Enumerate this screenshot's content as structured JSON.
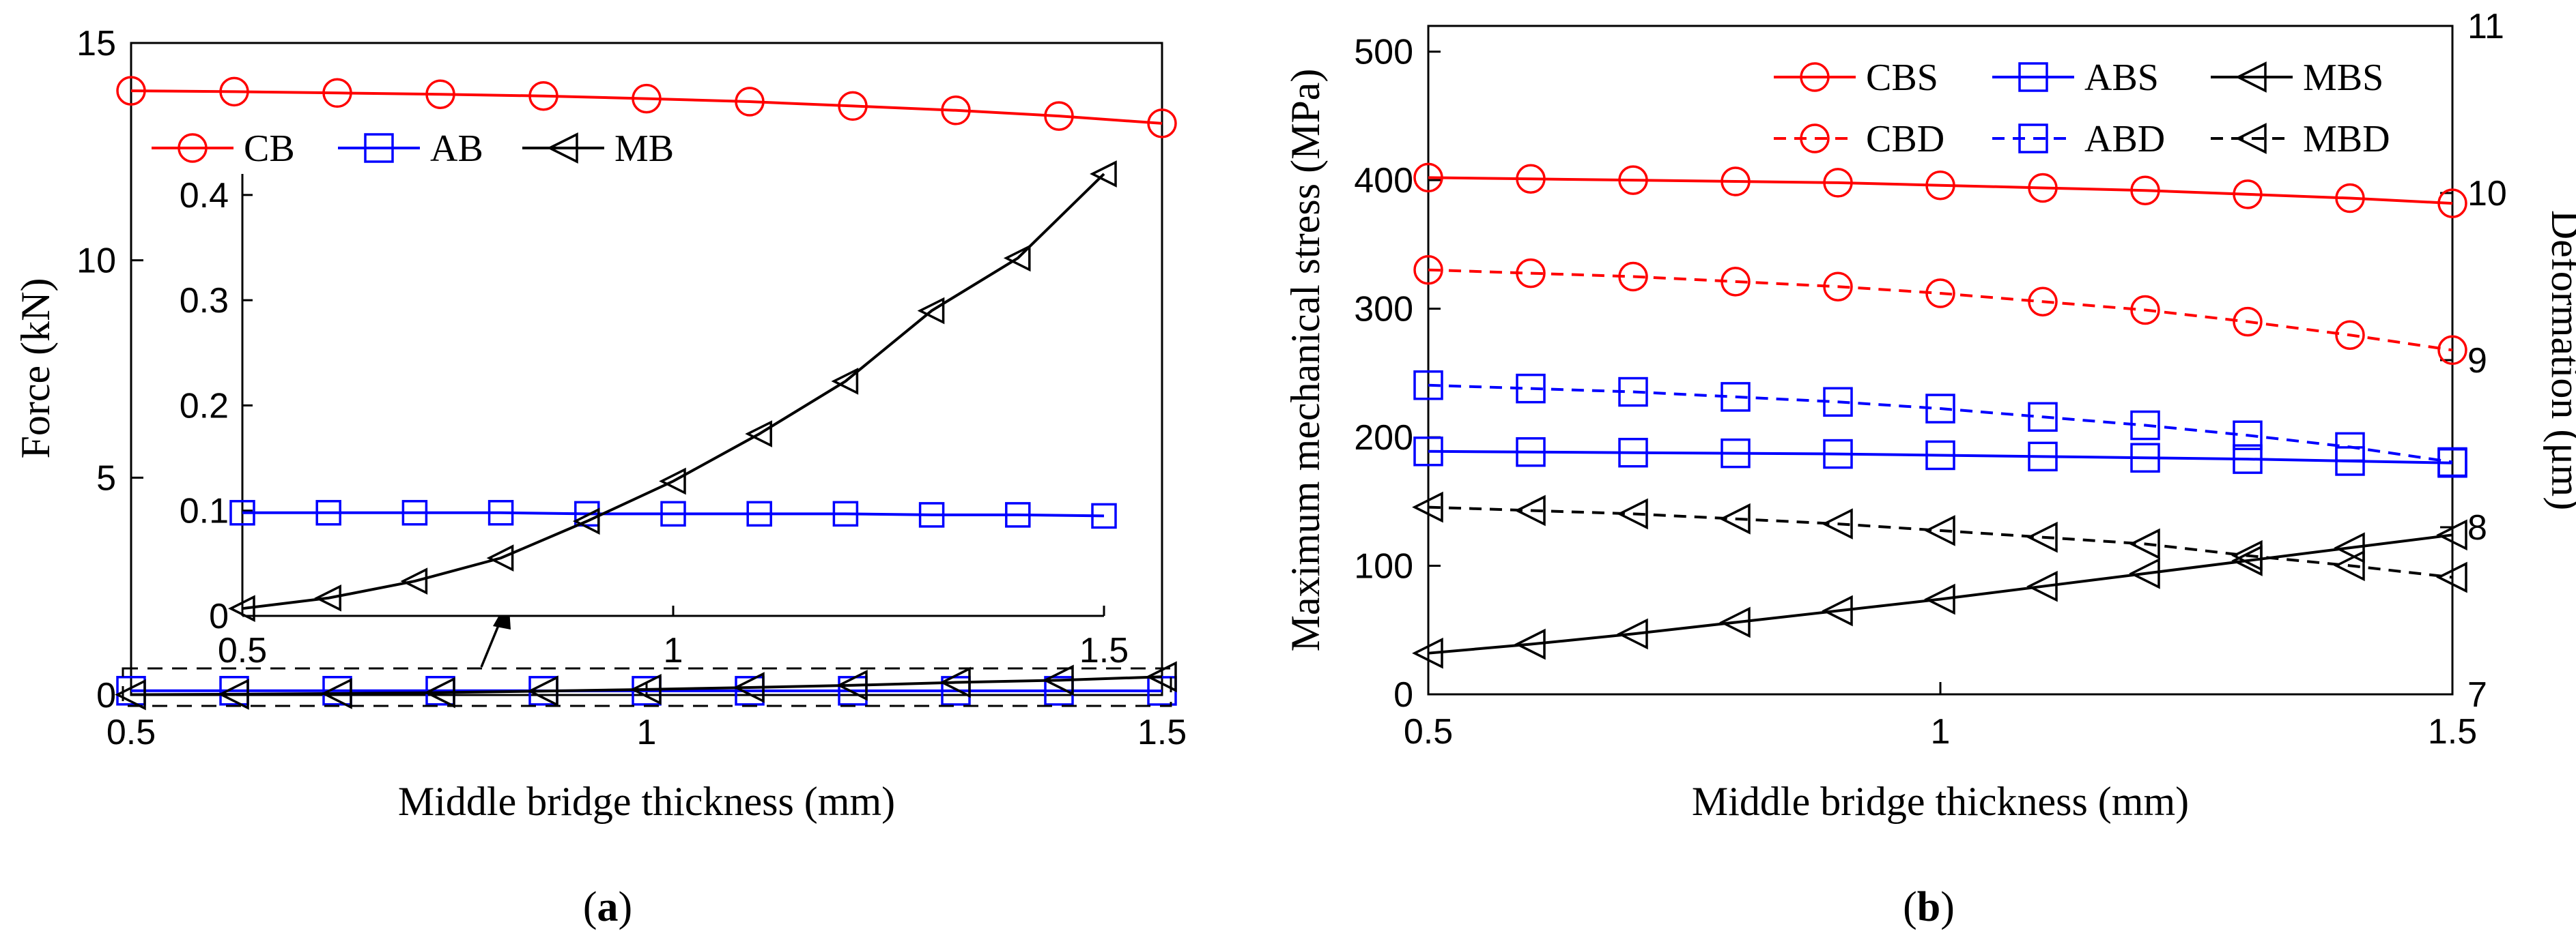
{
  "colors": {
    "CB": "#ff0000",
    "AB": "#0000ff",
    "MB": "#000000"
  },
  "chart_data": [
    {
      "type": "line",
      "id": "a",
      "caption": "a",
      "xlabel": "Middle bridge thickness (mm)",
      "ylabel": "Force (kN)",
      "xlim": [
        0.5,
        1.5
      ],
      "ylim": [
        0,
        15
      ],
      "xticks": [
        "0.5",
        "1",
        "1.5"
      ],
      "xtick_values": [
        0.5,
        1,
        1.5
      ],
      "yticks": [
        "0",
        "5",
        "10",
        "15"
      ],
      "ytick_values": [
        0,
        5,
        10,
        15
      ],
      "x": [
        0.5,
        0.6,
        0.7,
        0.8,
        0.9,
        1.0,
        1.1,
        1.2,
        1.3,
        1.4,
        1.5
      ],
      "series": [
        {
          "name": "CB",
          "color": "#ff0000",
          "marker": "circle",
          "dash": "solid",
          "values": [
            13.9,
            13.88,
            13.85,
            13.82,
            13.78,
            13.72,
            13.65,
            13.55,
            13.45,
            13.32,
            13.15
          ]
        },
        {
          "name": "AB",
          "color": "#0000ff",
          "marker": "square",
          "dash": "solid",
          "values": [
            0.098,
            0.098,
            0.098,
            0.098,
            0.097,
            0.097,
            0.097,
            0.097,
            0.096,
            0.096,
            0.095
          ]
        },
        {
          "name": "MB",
          "color": "#000000",
          "marker": "triangle-left",
          "dash": "solid",
          "values": [
            0.007,
            0.017,
            0.033,
            0.055,
            0.09,
            0.128,
            0.173,
            0.223,
            0.29,
            0.34,
            0.42
          ]
        }
      ],
      "legend": [
        "CB",
        "AB",
        "MB"
      ],
      "annotation": "dashed box with arrow pointing to zoomed inset",
      "inset": {
        "xlim": [
          0.5,
          1.5
        ],
        "ylim": [
          0,
          0.42
        ],
        "xticks": [
          "0.5",
          "1",
          "1.5"
        ],
        "xtick_values": [
          0.5,
          1,
          1.5
        ],
        "yticks": [
          "0",
          "0.1",
          "0.2",
          "0.3",
          "0.4"
        ],
        "ytick_values": [
          0,
          0.1,
          0.2,
          0.3,
          0.4
        ],
        "x": [
          0.5,
          0.6,
          0.7,
          0.8,
          0.9,
          1.0,
          1.1,
          1.2,
          1.3,
          1.4,
          1.5
        ],
        "series": [
          {
            "name": "AB",
            "color": "#0000ff",
            "marker": "square",
            "values": [
              0.098,
              0.098,
              0.098,
              0.098,
              0.097,
              0.097,
              0.097,
              0.097,
              0.096,
              0.096,
              0.095
            ]
          },
          {
            "name": "MB",
            "color": "#000000",
            "marker": "triangle-left",
            "values": [
              0.007,
              0.017,
              0.033,
              0.055,
              0.09,
              0.128,
              0.173,
              0.223,
              0.29,
              0.34,
              0.42
            ]
          }
        ]
      }
    },
    {
      "type": "line",
      "id": "b",
      "caption": "b",
      "xlabel": "Middle bridge thickness (mm)",
      "ylabel": "Maximum mechanical stress (MPa)",
      "y2label": "Deformation (μm)",
      "xlim": [
        0.5,
        1.5
      ],
      "ylim": [
        0,
        520
      ],
      "y2lim": [
        7,
        11
      ],
      "xticks": [
        "0.5",
        "1",
        "1.5"
      ],
      "xtick_values": [
        0.5,
        1,
        1.5
      ],
      "yticks": [
        "0",
        "100",
        "200",
        "300",
        "400",
        "500"
      ],
      "ytick_values": [
        0,
        100,
        200,
        300,
        400,
        500
      ],
      "y2ticks": [
        "7",
        "8",
        "9",
        "10",
        "11"
      ],
      "y2tick_values": [
        7,
        8,
        9,
        10,
        11
      ],
      "x": [
        0.5,
        0.6,
        0.7,
        0.8,
        0.9,
        1.0,
        1.1,
        1.2,
        1.3,
        1.4,
        1.5
      ],
      "series": [
        {
          "name": "CBS",
          "axis": "left",
          "color": "#ff0000",
          "marker": "circle",
          "dash": "solid",
          "values": [
            402,
            401,
            400,
            399,
            398,
            396,
            394,
            392,
            389,
            386,
            382
          ]
        },
        {
          "name": "ABS",
          "axis": "left",
          "color": "#0000ff",
          "marker": "square",
          "dash": "solid",
          "values": [
            189,
            188.5,
            188,
            187.5,
            187,
            186,
            185,
            184,
            183,
            181.5,
            180
          ]
        },
        {
          "name": "MBS",
          "axis": "left",
          "color": "#000000",
          "marker": "triangle-left",
          "dash": "solid",
          "values": [
            32,
            39,
            47,
            56,
            65,
            74,
            84,
            94,
            104,
            114,
            124
          ]
        },
        {
          "name": "CBD",
          "axis": "right",
          "color": "#ff0000",
          "marker": "circle",
          "dash": "dashed",
          "values": [
            9.54,
            9.52,
            9.5,
            9.47,
            9.44,
            9.4,
            9.35,
            9.3,
            9.23,
            9.15,
            9.06
          ]
        },
        {
          "name": "ABD",
          "axis": "right",
          "color": "#0000ff",
          "marker": "square",
          "dash": "dashed",
          "values": [
            8.85,
            8.83,
            8.81,
            8.78,
            8.75,
            8.71,
            8.66,
            8.61,
            8.55,
            8.48,
            8.39
          ]
        },
        {
          "name": "MBD",
          "axis": "right",
          "color": "#000000",
          "marker": "triangle-left",
          "dash": "dashed",
          "values": [
            8.12,
            8.1,
            8.08,
            8.05,
            8.02,
            7.98,
            7.94,
            7.9,
            7.83,
            7.77,
            7.7
          ]
        }
      ],
      "legend": [
        "CBS",
        "ABS",
        "MBS",
        "CBD",
        "ABD",
        "MBD"
      ]
    }
  ]
}
